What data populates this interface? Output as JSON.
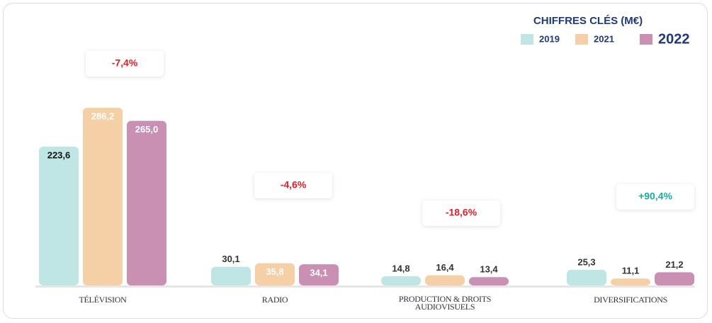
{
  "chart_data": {
    "type": "bar",
    "title": "CHIFFRES CLÉS (M€)",
    "categories": [
      "TÉLÉVISION",
      "RADIO",
      "PRODUCTION & DROITS AUDIOVISUELS",
      "DIVERSIFICATIONS"
    ],
    "series": [
      {
        "name": "2019",
        "color": "#bfe6e4",
        "values": [
          223.6,
          30.1,
          14.8,
          25.3
        ],
        "value_labels": [
          "223,6",
          "30,1",
          "14,8",
          "25,3"
        ]
      },
      {
        "name": "2021",
        "color": "#f5cfa6",
        "values": [
          286.2,
          35.8,
          16.4,
          11.1
        ],
        "value_labels": [
          "286,2",
          "35,8",
          "16,4",
          "11,1"
        ]
      },
      {
        "name": "2022",
        "color": "#c990b4",
        "values": [
          265.0,
          34.1,
          13.4,
          21.2
        ],
        "value_labels": [
          "265,0",
          "34,1",
          "13,4",
          "21,2"
        ]
      }
    ],
    "annotations": [
      "-7,4%",
      "-4,6%",
      "-18,6%",
      "+90,4%"
    ],
    "annotation_colors": [
      "#e0202a",
      "#e0202a",
      "#e0202a",
      "#1aab9b"
    ],
    "ylim": [
      0,
      300
    ]
  }
}
